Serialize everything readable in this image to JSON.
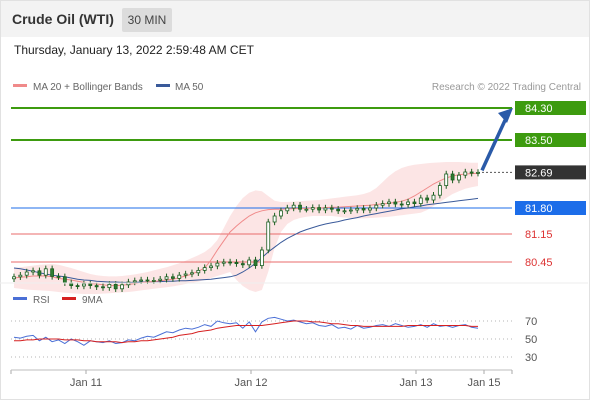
{
  "header": {
    "title": "Crude Oil (WTI)",
    "timeframe": "30 MIN"
  },
  "datetime": "Thursday, January 13, 2022 2:59:48 AM CET",
  "legend": {
    "ma20": "MA 20 + Bollinger Bands",
    "ma50": "MA 50",
    "credit": "Research © 2022 Trading Central"
  },
  "rsi_legend": {
    "rsi": "RSI",
    "ma": "9MA"
  },
  "colors": {
    "resistance": "#3d9b0f",
    "support": "#e96b6b",
    "current": "#333333",
    "pivot": "#1c6de9",
    "arrow": "#2a5aa8",
    "ma20": "#f08a8a",
    "ma50": "#3a5a9a",
    "bband": "#fbe0e0",
    "candle": "#2e7d32",
    "rsi": "#4a6fd6",
    "rsi_ma": "#d62020"
  },
  "chart_data": [
    {
      "type": "candlestick",
      "ylim": [
        79.6,
        84.6
      ],
      "levels": [
        {
          "label": "84.30",
          "value": 84.3,
          "kind": "resistance"
        },
        {
          "label": "83.50",
          "value": 83.5,
          "kind": "resistance"
        },
        {
          "label": "82.69",
          "value": 82.69,
          "kind": "current"
        },
        {
          "label": "81.80",
          "value": 81.8,
          "kind": "pivot"
        },
        {
          "label": "81.15",
          "value": 81.15,
          "kind": "support"
        },
        {
          "label": "80.45",
          "value": 80.45,
          "kind": "support"
        }
      ],
      "x_ticks": [
        "Jan 11",
        "Jan 12",
        "Jan 13",
        "Jan 15"
      ],
      "close": [
        80.08,
        80.12,
        80.2,
        80.23,
        80.12,
        80.28,
        80.09,
        80.08,
        79.93,
        79.86,
        79.85,
        79.9,
        79.86,
        79.83,
        79.81,
        79.89,
        79.78,
        79.88,
        79.95,
        79.98,
        80.0,
        79.98,
        79.99,
        80.02,
        80.08,
        80.04,
        80.12,
        80.15,
        80.18,
        80.24,
        80.31,
        80.35,
        80.42,
        80.45,
        80.44,
        80.41,
        80.38,
        80.5,
        80.36,
        80.75,
        81.45,
        81.6,
        81.73,
        81.8,
        81.87,
        81.77,
        81.77,
        81.81,
        81.75,
        81.8,
        81.77,
        81.73,
        81.73,
        81.75,
        81.79,
        81.75,
        81.8,
        81.87,
        81.91,
        81.95,
        81.9,
        81.89,
        81.95,
        81.91,
        82.05,
        82.0,
        82.12,
        82.36,
        82.65,
        82.5,
        82.62,
        82.7,
        82.67,
        82.69
      ],
      "ma20": [
        80.05,
        80.07,
        80.08,
        80.1,
        80.1,
        80.1,
        80.08,
        80.04,
        80.02,
        80.0,
        79.97,
        79.94,
        79.91,
        79.9,
        79.88,
        79.86,
        79.86,
        79.87,
        79.89,
        79.91,
        79.93,
        79.95,
        79.96,
        79.98,
        80.0,
        80.02,
        80.06,
        80.1,
        80.15,
        80.22,
        80.3,
        80.5,
        80.75,
        80.98,
        81.2,
        81.35,
        81.48,
        81.6,
        81.68,
        81.73,
        81.76,
        81.77,
        81.77,
        81.78,
        81.78,
        81.79,
        81.79,
        81.8,
        81.8,
        81.81,
        81.82,
        81.82,
        81.83,
        81.84,
        81.85,
        81.86,
        81.87,
        81.89,
        81.9,
        81.92,
        81.94,
        81.97,
        82.02,
        82.1,
        82.2,
        82.3,
        82.4,
        82.48,
        82.55,
        82.6,
        82.63,
        82.65,
        82.66,
        82.67
      ],
      "ma50": [
        80.3,
        80.28,
        80.25,
        80.22,
        80.18,
        80.15,
        80.12,
        80.1,
        80.08,
        80.05,
        80.02,
        80.0,
        79.99,
        79.97,
        79.96,
        79.95,
        79.95,
        79.94,
        79.94,
        79.94,
        79.95,
        79.95,
        79.96,
        79.96,
        79.97,
        79.97,
        79.98,
        79.98,
        79.99,
        80.0,
        80.01,
        80.02,
        80.04,
        80.06,
        80.08,
        80.12,
        80.2,
        80.3,
        80.42,
        80.56,
        80.7,
        80.82,
        80.94,
        81.04,
        81.12,
        81.2,
        81.26,
        81.31,
        81.36,
        81.4,
        81.43,
        81.46,
        81.5,
        81.53,
        81.56,
        81.6,
        81.63,
        81.66,
        81.69,
        81.72,
        81.75,
        81.78,
        81.8,
        81.83,
        81.85,
        81.88,
        81.9,
        81.92,
        81.94,
        81.96,
        81.98,
        82.0,
        82.02,
        82.04
      ],
      "bb_upper": [
        80.3,
        80.32,
        80.34,
        80.36,
        80.38,
        80.39,
        80.4,
        80.38,
        80.34,
        80.3,
        80.25,
        80.2,
        80.15,
        80.12,
        80.1,
        80.09,
        80.09,
        80.1,
        80.12,
        80.14,
        80.17,
        80.2,
        80.24,
        80.28,
        80.32,
        80.37,
        80.42,
        80.48,
        80.55,
        80.62,
        80.7,
        80.82,
        81.0,
        81.3,
        81.6,
        81.85,
        82.05,
        82.18,
        82.24,
        82.22,
        82.1,
        81.98,
        81.95,
        81.95,
        81.96,
        81.97,
        81.98,
        81.99,
        82.0,
        82.02,
        82.04,
        82.06,
        82.08,
        82.1,
        82.12,
        82.15,
        82.2,
        82.3,
        82.45,
        82.6,
        82.72,
        82.8,
        82.85,
        82.88,
        82.9,
        82.92,
        82.93,
        82.94,
        82.95,
        82.95,
        82.95,
        82.94,
        82.93,
        82.93
      ],
      "bb_lower": [
        79.8,
        79.78,
        79.76,
        79.75,
        79.74,
        79.73,
        79.72,
        79.7,
        79.68,
        79.67,
        79.66,
        79.65,
        79.65,
        79.65,
        79.66,
        79.67,
        79.68,
        79.69,
        79.7,
        79.72,
        79.74,
        79.76,
        79.78,
        79.8,
        79.82,
        79.84,
        79.87,
        79.9,
        79.93,
        79.96,
        80.0,
        80.05,
        80.1,
        80.15,
        80.2,
        80.0,
        79.85,
        79.75,
        79.7,
        79.75,
        80.2,
        80.8,
        81.2,
        81.4,
        81.5,
        81.55,
        81.58,
        81.6,
        81.6,
        81.6,
        81.6,
        81.58,
        81.56,
        81.55,
        81.54,
        81.54,
        81.55,
        81.56,
        81.57,
        81.58,
        81.6,
        81.62,
        81.64,
        81.66,
        81.68,
        81.75,
        81.85,
        81.95,
        82.05,
        82.15,
        82.22,
        82.28,
        82.32,
        82.35
      ]
    },
    {
      "type": "line",
      "ylim": [
        20,
        80
      ],
      "y_ticks": [
        70,
        50,
        30
      ],
      "series": [
        {
          "name": "RSI",
          "values": [
            52,
            51,
            53,
            54,
            48,
            52,
            47,
            49,
            45,
            50,
            47,
            43,
            48,
            47,
            46,
            48,
            45,
            46,
            49,
            48,
            51,
            53,
            52,
            55,
            58,
            57,
            60,
            62,
            61,
            63,
            66,
            64,
            70,
            68,
            67,
            68,
            62,
            69,
            58,
            69,
            73,
            74,
            72,
            70,
            71,
            69,
            67,
            68,
            65,
            64,
            66,
            62,
            63,
            61,
            65,
            62,
            63,
            65,
            66,
            64,
            67,
            65,
            63,
            64,
            66,
            63,
            67,
            64,
            65,
            63,
            65,
            66,
            63,
            62
          ]
        },
        {
          "name": "9MA",
          "values": [
            48,
            48,
            49,
            49,
            50,
            50,
            50,
            50,
            49,
            49,
            49,
            48,
            48,
            47,
            47,
            47,
            47,
            46,
            47,
            47,
            48,
            48,
            49,
            50,
            51,
            52,
            54,
            55,
            56,
            58,
            59,
            60,
            62,
            63,
            64,
            65,
            65,
            65,
            65,
            65,
            66,
            67,
            68,
            69,
            70,
            70,
            70,
            69,
            69,
            68,
            67,
            67,
            66,
            65,
            65,
            64,
            64,
            64,
            64,
            64,
            64,
            64,
            65,
            65,
            65,
            65,
            65,
            65,
            65,
            65,
            65,
            65,
            64,
            64
          ]
        }
      ]
    }
  ]
}
